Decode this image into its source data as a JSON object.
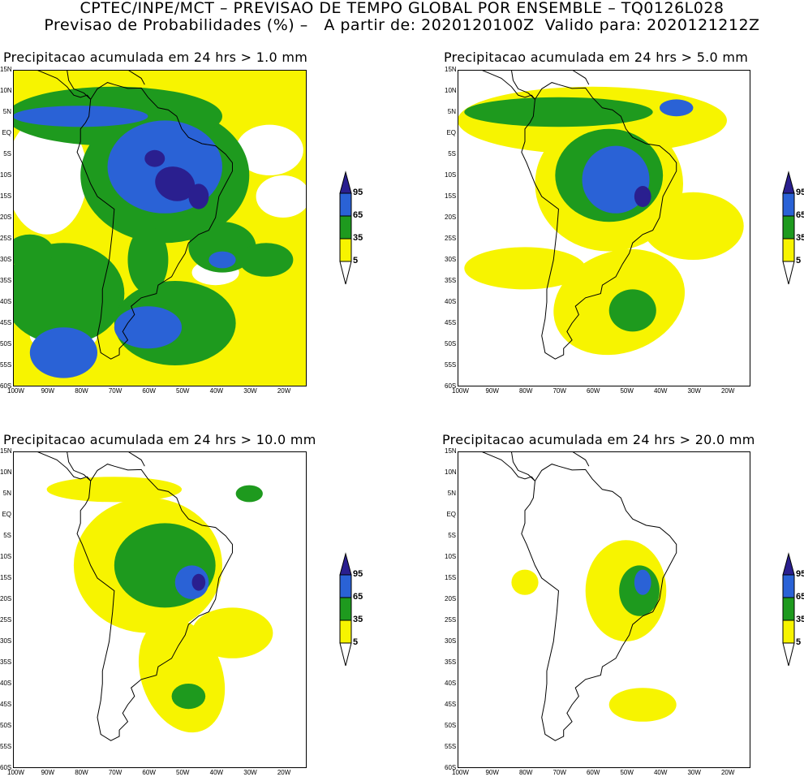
{
  "header": {
    "line1": "CPTEC/INPE/MCT – PREVISAO DE TEMPO GLOBAL POR ENSEMBLE – TQ0126L028",
    "line2": "Previsao de Probabilidades (%) –   A partir de: 2020120100Z  Valido para: 2020121212Z"
  },
  "panels": [
    {
      "title": "Precipitacao acumulada em 24 hrs > 1.0 mm"
    },
    {
      "title": "Precipitacao acumulada em 24 hrs > 5.0 mm"
    },
    {
      "title": "Precipitacao acumulada em 24 hrs > 10.0 mm"
    },
    {
      "title": "Precipitacao acumulada em 24 hrs > 20.0 mm"
    }
  ],
  "axes": {
    "lat_labels": [
      "15N",
      "10N",
      "5N",
      "EQ",
      "5S",
      "10S",
      "15S",
      "20S",
      "25S",
      "30S",
      "35S",
      "40S",
      "45S",
      "50S",
      "55S",
      "60S"
    ],
    "lon_labels": [
      "100W",
      "90W",
      "80W",
      "70W",
      "60W",
      "50W",
      "40W",
      "30W",
      "20W"
    ]
  },
  "colorbar": {
    "labels": [
      "95",
      "65",
      "35",
      "5"
    ],
    "colors": {
      "c95": "#2a1f8f",
      "c65": "#2a62d6",
      "c35": "#1e9a1e",
      "c5": "#f7f400"
    }
  }
}
